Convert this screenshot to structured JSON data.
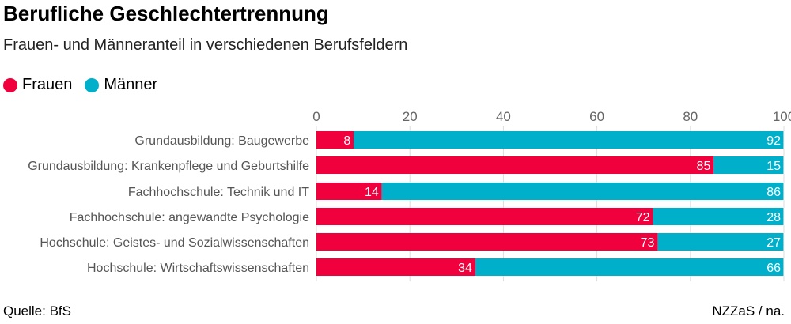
{
  "title": "Berufliche Geschlechtertrennung",
  "subtitle": "Frauen- und Männeranteil in verschiedenen Berufsfeldern",
  "source": "Quelle: BfS",
  "credit": "NZZaS / na.",
  "chart_data": {
    "type": "bar",
    "orientation": "horizontal",
    "stacked": true,
    "categories": [
      "Grundausbildung: Baugewerbe",
      "Grundausbildung: Krankenpflege und Geburtshilfe",
      "Fachhochschule: Technik und IT",
      "Fachhochschule: angewandte Psychologie",
      "Hochschule: Geistes- und Sozialwissenschaften",
      "Hochschule: Wirtschaftswissenschaften"
    ],
    "series": [
      {
        "name": "Frauen",
        "color": "#f0003c",
        "values": [
          8,
          85,
          14,
          72,
          73,
          34
        ]
      },
      {
        "name": "Männer",
        "color": "#00afca",
        "values": [
          92,
          15,
          86,
          28,
          27,
          66
        ]
      }
    ],
    "xlim": [
      0,
      100
    ],
    "xticks": [
      "0",
      "20",
      "40",
      "60",
      "80",
      "100"
    ],
    "grid": true,
    "legend": "top-left"
  }
}
